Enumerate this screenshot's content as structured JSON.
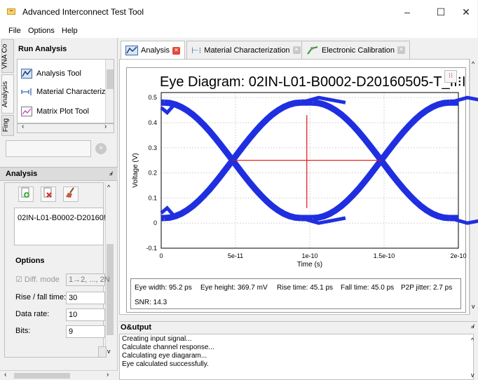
{
  "window": {
    "title": "Advanced Interconnect Test Tool",
    "minimize": "–",
    "maximize": "☐",
    "close": "✕"
  },
  "menu": [
    {
      "label": "File"
    },
    {
      "label": "Options"
    },
    {
      "label": "Help"
    }
  ],
  "left": {
    "vtab_top": "VNA Co",
    "vtab_analysis": "Analysis",
    "vtab_bottom": "Fing",
    "run_analysis_title": "Run Analysis",
    "tools": [
      {
        "label": "Analysis Tool",
        "icon": "analysis-tool-icon"
      },
      {
        "label": "Material Characterizati",
        "icon": "material-characterization-icon"
      },
      {
        "label": "Matrix Plot Tool",
        "icon": "matrix-plot-icon"
      }
    ],
    "analysis_header": "Analysis",
    "item": "02IN-L01-B0002-D20160!",
    "options_label": "Options",
    "diff_mode_label": "Diff. mode",
    "diff_mode_value": "1→2, ..., 2N",
    "rise_fall_label": "Rise / fall time:",
    "rise_fall_value": "30",
    "data_rate_label": "Data rate:",
    "data_rate_value": "10",
    "bits_label": "Bits:",
    "bits_value": "9"
  },
  "tabs": [
    {
      "label": "Analysis",
      "active": true
    },
    {
      "label": "Material Characterization",
      "active": false
    },
    {
      "label": "Electronic Calibration",
      "active": false
    }
  ],
  "plot": {
    "title": "Eye Diagram: 02IN-L01-B0002-D20160505-T_II⁝I",
    "stats": {
      "eye_width": "Eye width: 95.2 ps",
      "eye_height": "Eye height: 369.7 mV",
      "rise_time": "Rise time: 45.1 ps",
      "fall_time": "Fall time: 45.0 ps",
      "p2p_jitter": "P2P jitter: 2.7 ps",
      "snr": "SNR: 14.3"
    }
  },
  "chart_data": {
    "type": "line",
    "title": "Eye Diagram: 02IN-L01-B0002-D20160505-T_II⁝I",
    "xlabel": "Time (s)",
    "ylabel": "Voltage (V)",
    "xlim": [
      0,
      2e-10
    ],
    "ylim": [
      -0.1,
      0.52
    ],
    "x_ticks": [
      "0",
      "5e-11",
      "1e-10",
      "1.5e-10",
      "2e-10"
    ],
    "y_ticks": [
      "-0.1",
      "0",
      "0.1",
      "0.2",
      "0.3",
      "0.4",
      "0.5"
    ],
    "grid": true,
    "eye_color": "#1f2fe0",
    "marker_color": "#e01010",
    "levels": {
      "high": 0.48,
      "low": 0.02
    },
    "crossings": [
      4.8e-11,
      1.48e-10
    ],
    "marker": {
      "center_x": 9.8e-11,
      "center_y": 0.25,
      "x_span": [
        4.8e-11,
        1.48e-10
      ],
      "y_span": [
        0.06,
        0.43
      ]
    }
  },
  "output": {
    "title": "O&utput",
    "lines": [
      "Creating input signal...",
      "Calculate channel response...",
      "Calculating eye diagaram...",
      "Eye calculated successfully."
    ]
  }
}
